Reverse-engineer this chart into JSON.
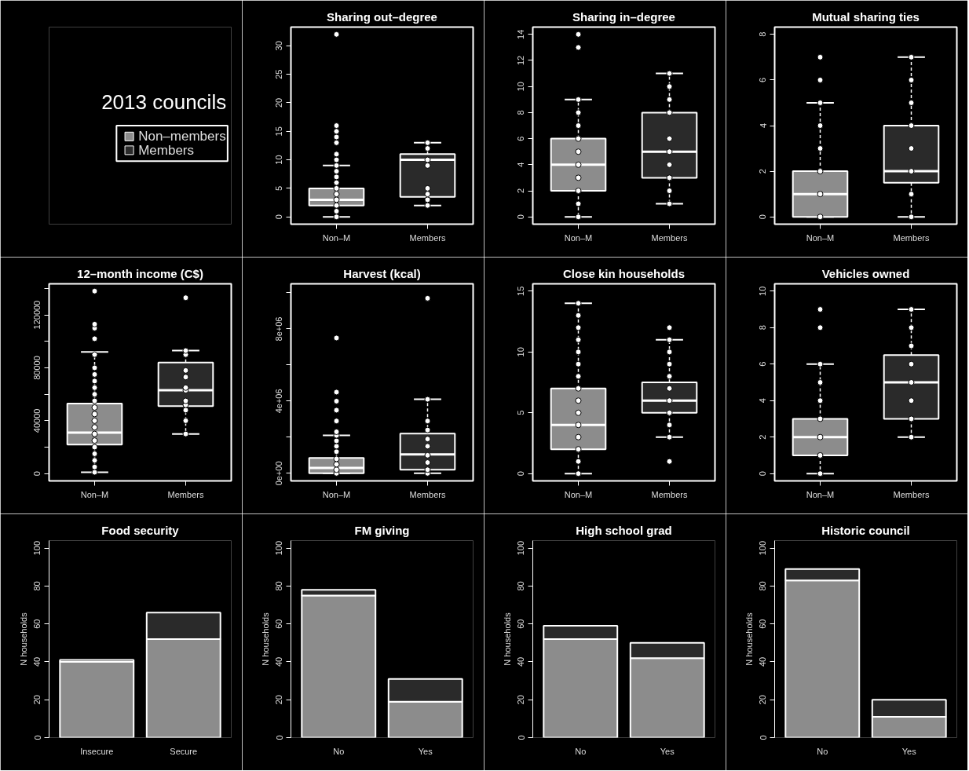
{
  "chart_data": [
    {
      "type": "other",
      "title": "2013 councils",
      "series": [
        {
          "name": "Non–members",
          "color": "#8c8c8c"
        },
        {
          "name": "Members",
          "color": "#2a2a2a"
        }
      ]
    },
    {
      "type": "box",
      "title": "Sharing out–degree",
      "categories": [
        "Non–M",
        "Members"
      ],
      "colors": [
        "#8c8c8c",
        "#2a2a2a"
      ],
      "ylim": [
        -1.28,
        33.28
      ],
      "yticks": [
        0,
        5,
        10,
        15,
        20,
        25,
        30
      ],
      "boxes": [
        {
          "low": 0,
          "q1": 2,
          "median": 3,
          "q3": 5,
          "high": 9
        },
        {
          "low": 2,
          "q1": 3.5,
          "median": 10,
          "q3": 11,
          "high": 13
        }
      ],
      "series": [
        {
          "type": "scatter",
          "color": "#ffffff",
          "x": [
            "Non–M",
            "Non–M",
            "Non–M",
            "Non–M",
            "Non–M",
            "Non–M",
            "Non–M",
            "Non–M",
            "Non–M",
            "Non–M",
            "Non–M",
            "Non–M",
            "Non–M",
            "Non–M",
            "Non–M",
            "Non–M",
            "Non–M",
            "Members",
            "Members",
            "Members",
            "Members",
            "Members",
            "Members",
            "Members",
            "Members"
          ],
          "values": [
            0,
            1,
            2,
            3,
            4,
            5,
            6,
            7,
            8,
            9,
            10,
            11,
            13,
            14,
            15,
            16,
            32,
            2,
            3,
            4,
            5,
            9,
            10,
            12,
            13
          ]
        }
      ],
      "marker": "circle"
    },
    {
      "type": "box",
      "title": "Sharing in–degree",
      "categories": [
        "Non–M",
        "Members"
      ],
      "colors": [
        "#8c8c8c",
        "#2a2a2a"
      ],
      "ylim": [
        -0.56,
        14.56
      ],
      "yticks": [
        0,
        2,
        4,
        6,
        8,
        10,
        12,
        14
      ],
      "boxes": [
        {
          "low": 0,
          "q1": 2,
          "median": 4,
          "q3": 6,
          "high": 9
        },
        {
          "low": 1,
          "q1": 3,
          "median": 5,
          "q3": 8,
          "high": 11
        }
      ],
      "series": [
        {
          "type": "scatter",
          "color": "#ffffff",
          "x": [
            "Non–M",
            "Non–M",
            "Non–M",
            "Non–M",
            "Non–M",
            "Non–M",
            "Non–M",
            "Non–M",
            "Non–M",
            "Non–M",
            "Non–M",
            "Non–M",
            "Members",
            "Members",
            "Members",
            "Members",
            "Members",
            "Members",
            "Members",
            "Members",
            "Members",
            "Members"
          ],
          "values": [
            0,
            1,
            2,
            3,
            4,
            5,
            6,
            7,
            8,
            9,
            13,
            14,
            1,
            2,
            3,
            4,
            5,
            6,
            8,
            9,
            10,
            11
          ]
        }
      ],
      "marker": "circle"
    },
    {
      "type": "box",
      "title": "Mutual sharing ties",
      "categories": [
        "Non–M",
        "Members"
      ],
      "colors": [
        "#8c8c8c",
        "#2a2a2a"
      ],
      "ylim": [
        -0.32,
        8.32
      ],
      "yticks": [
        0,
        2,
        4,
        6,
        8
      ],
      "boxes": [
        {
          "low": 0,
          "q1": 0,
          "median": 1,
          "q3": 2,
          "high": 5
        },
        {
          "low": 0,
          "q1": 1.5,
          "median": 2,
          "q3": 4,
          "high": 7
        }
      ],
      "series": [
        {
          "type": "scatter",
          "color": "#ffffff",
          "x": [
            "Non–M",
            "Non–M",
            "Non–M",
            "Non–M",
            "Non–M",
            "Non–M",
            "Non–M",
            "Non–M",
            "Members",
            "Members",
            "Members",
            "Members",
            "Members",
            "Members",
            "Members",
            "Members"
          ],
          "values": [
            0,
            1,
            2,
            3,
            4,
            5,
            6,
            7,
            0,
            1,
            2,
            3,
            4,
            5,
            6,
            7
          ]
        }
      ],
      "marker": "circle"
    },
    {
      "type": "box",
      "title": "12–month income (C$)",
      "categories": [
        "Non–M",
        "Members"
      ],
      "colors": [
        "#8c8c8c",
        "#2a2a2a"
      ],
      "ylim": [
        -5520,
        143520
      ],
      "yticks": [
        0,
        {
          "value": 20000,
          "label": null
        },
        40000,
        {
          "value": 60000,
          "label": null
        },
        80000,
        {
          "value": 100000,
          "label": null
        },
        120000,
        {
          "value": 140000,
          "label": null
        }
      ],
      "boxes": [
        {
          "low": 1000,
          "q1": 22000,
          "median": 31000,
          "q3": 53000,
          "high": 92000
        },
        {
          "low": 30000,
          "q1": 51000,
          "median": 63000,
          "q3": 84000,
          "high": 93000
        }
      ],
      "series": [
        {
          "type": "scatter",
          "color": "#ffffff",
          "x": [
            "Non–M",
            "Non–M",
            "Non–M",
            "Non–M",
            "Non–M",
            "Non–M",
            "Non–M",
            "Non–M",
            "Non–M",
            "Non–M",
            "Non–M",
            "Non–M",
            "Non–M",
            "Non–M",
            "Non–M",
            "Non–M",
            "Non–M",
            "Non–M",
            "Non–M",
            "Non–M",
            "Non–M",
            "Non–M",
            "Members",
            "Members",
            "Members",
            "Members",
            "Members",
            "Members",
            "Members",
            "Members",
            "Members",
            "Members",
            "Members",
            "Members"
          ],
          "values": [
            1000,
            5000,
            10000,
            15000,
            20000,
            25000,
            30000,
            35000,
            40000,
            45000,
            50000,
            55000,
            60000,
            65000,
            70000,
            75000,
            80000,
            90000,
            102000,
            110000,
            113000,
            138000,
            30000,
            40000,
            48000,
            52000,
            55000,
            63000,
            65000,
            73000,
            78000,
            90000,
            93000,
            133000
          ]
        }
      ],
      "marker": "circle"
    },
    {
      "type": "box",
      "title": "Harvest (kcal)",
      "categories": [
        "Non–M",
        "Members"
      ],
      "colors": [
        "#8c8c8c",
        "#2a2a2a"
      ],
      "ylim": [
        -420000,
        10500000
      ],
      "yticks": [
        {
          "value": 0,
          "label": "0e+00"
        },
        {
          "value": 2000000,
          "label": null
        },
        {
          "value": 4000000,
          "label": "4e+06"
        },
        {
          "value": 6000000,
          "label": null
        },
        {
          "value": 8000000,
          "label": "8e+06"
        },
        {
          "value": 10000000,
          "label": null
        }
      ],
      "boxes": [
        {
          "low": 0,
          "q1": 0,
          "median": 300000,
          "q3": 850000,
          "high": 2100000
        },
        {
          "low": 0,
          "q1": 200000,
          "median": 1050000,
          "q3": 2200000,
          "high": 4100000
        }
      ],
      "series": [
        {
          "type": "scatter",
          "color": "#ffffff",
          "x": [
            "Non–M",
            "Non–M",
            "Non–M",
            "Non–M",
            "Non–M",
            "Non–M",
            "Non–M",
            "Non–M",
            "Non–M",
            "Non–M",
            "Non–M",
            "Non–M",
            "Non–M",
            "Non–M",
            "Members",
            "Members",
            "Members",
            "Members",
            "Members",
            "Members",
            "Members",
            "Members",
            "Members",
            "Members"
          ],
          "values": [
            0,
            200000,
            500000,
            800000,
            1200000,
            1500000,
            1800000,
            2100000,
            2300000,
            2900000,
            3500000,
            4000000,
            4500000,
            7500000,
            0,
            200000,
            600000,
            1000000,
            1500000,
            1900000,
            2400000,
            2900000,
            4100000,
            9700000
          ]
        }
      ],
      "marker": "circle"
    },
    {
      "type": "box",
      "title": "Close kin households",
      "categories": [
        "Non–M",
        "Members"
      ],
      "colors": [
        "#8c8c8c",
        "#2a2a2a"
      ],
      "ylim": [
        -0.6,
        15.6
      ],
      "yticks": [
        0,
        5,
        10,
        15
      ],
      "boxes": [
        {
          "low": 0,
          "q1": 2,
          "median": 4,
          "q3": 7,
          "high": 14
        },
        {
          "low": 3,
          "q1": 5,
          "median": 6,
          "q3": 7.5,
          "high": 11
        }
      ],
      "series": [
        {
          "type": "scatter",
          "color": "#ffffff",
          "x": [
            "Non–M",
            "Non–M",
            "Non–M",
            "Non–M",
            "Non–M",
            "Non–M",
            "Non–M",
            "Non–M",
            "Non–M",
            "Non–M",
            "Non–M",
            "Non–M",
            "Non–M",
            "Non–M",
            "Non–M",
            "Members",
            "Members",
            "Members",
            "Members",
            "Members",
            "Members",
            "Members",
            "Members",
            "Members",
            "Members",
            "Members"
          ],
          "values": [
            0,
            1,
            2,
            3,
            4,
            5,
            6,
            7,
            8,
            9,
            10,
            11,
            12,
            13,
            14,
            1,
            3,
            4,
            5,
            6,
            7,
            8,
            9,
            10,
            11,
            12
          ]
        }
      ],
      "marker": "circle"
    },
    {
      "type": "box",
      "title": "Vehicles owned",
      "categories": [
        "Non–M",
        "Members"
      ],
      "colors": [
        "#8c8c8c",
        "#2a2a2a"
      ],
      "ylim": [
        -0.4,
        10.4
      ],
      "yticks": [
        0,
        2,
        4,
        6,
        8,
        10
      ],
      "boxes": [
        {
          "low": 0,
          "q1": 1,
          "median": 2,
          "q3": 3,
          "high": 6
        },
        {
          "low": 2,
          "q1": 3,
          "median": 5,
          "q3": 6.5,
          "high": 9
        }
      ],
      "series": [
        {
          "type": "scatter",
          "color": "#ffffff",
          "x": [
            "Non–M",
            "Non–M",
            "Non–M",
            "Non–M",
            "Non–M",
            "Non–M",
            "Non–M",
            "Non–M",
            "Non–M",
            "Members",
            "Members",
            "Members",
            "Members",
            "Members",
            "Members",
            "Members",
            "Members"
          ],
          "values": [
            0,
            1,
            2,
            3,
            4,
            5,
            6,
            8,
            9,
            2,
            3,
            4,
            5,
            6,
            7,
            8,
            9
          ]
        }
      ],
      "marker": "circle"
    },
    {
      "type": "bar",
      "title": "Food security",
      "ylabel": "N households",
      "categories": [
        "Insecure",
        "Secure"
      ],
      "stacked": true,
      "ylim": [
        0,
        104
      ],
      "yticks": [
        0,
        20,
        40,
        60,
        80,
        100
      ],
      "series": [
        {
          "color": "#8c8c8c",
          "values": [
            40,
            52
          ]
        },
        {
          "color": "#2a2a2a",
          "values": [
            1,
            14
          ]
        }
      ]
    },
    {
      "type": "bar",
      "title": "FM giving",
      "ylabel": "N households",
      "categories": [
        "No",
        "Yes"
      ],
      "stacked": true,
      "ylim": [
        0,
        104
      ],
      "yticks": [
        0,
        20,
        40,
        60,
        80,
        100
      ],
      "series": [
        {
          "color": "#8c8c8c",
          "values": [
            75,
            19
          ]
        },
        {
          "color": "#2a2a2a",
          "values": [
            3,
            12
          ]
        }
      ]
    },
    {
      "type": "bar",
      "title": "High school grad",
      "ylabel": "N households",
      "categories": [
        "No",
        "Yes"
      ],
      "stacked": true,
      "ylim": [
        0,
        104
      ],
      "yticks": [
        0,
        20,
        40,
        60,
        80,
        100
      ],
      "series": [
        {
          "color": "#8c8c8c",
          "values": [
            52,
            42
          ]
        },
        {
          "color": "#2a2a2a",
          "values": [
            7,
            8
          ]
        }
      ]
    },
    {
      "type": "bar",
      "title": "Historic council",
      "ylabel": "N households",
      "categories": [
        "No",
        "Yes"
      ],
      "stacked": true,
      "ylim": [
        0,
        104
      ],
      "yticks": [
        0,
        20,
        40,
        60,
        80,
        100
      ],
      "series": [
        {
          "color": "#8c8c8c",
          "values": [
            83,
            11
          ]
        },
        {
          "color": "#2a2a2a",
          "values": [
            6,
            9
          ]
        }
      ]
    }
  ]
}
